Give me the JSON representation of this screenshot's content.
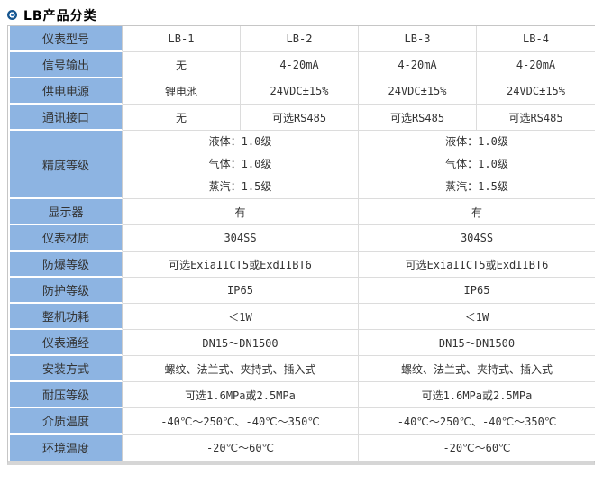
{
  "page": {
    "title": "LB产品分类"
  },
  "colors": {
    "label_cell_bg": "#8db4e2",
    "bullet_icon_blue": "#17568f",
    "grid_line": "#dcdcdc",
    "outer_border": "#c6c6c6",
    "bottom_bar": "#d6d6d6",
    "text": "#333333"
  },
  "table": {
    "rows": [
      {
        "label": "仪表型号",
        "cells": [
          "LB-1",
          "LB-2",
          "LB-3",
          "LB-4"
        ]
      },
      {
        "label": "信号输出",
        "cells": [
          "无",
          "4-20mA",
          "4-20mA",
          "4-20mA"
        ]
      },
      {
        "label": "供电电源",
        "cells": [
          "锂电池",
          "24VDC±15%",
          "24VDC±15%",
          "24VDC±15%"
        ]
      },
      {
        "label": "通讯接口",
        "cells": [
          "无",
          "可选RS485",
          "可选RS485",
          "可选RS485"
        ]
      },
      {
        "label": "精度等级",
        "cells": [
          [
            "液体：1.0级",
            "气体：1.0级",
            "蒸汽：1.5级"
          ],
          [
            "液体：1.0级",
            "气体：1.0级",
            "蒸汽：1.5级"
          ]
        ]
      },
      {
        "label": "显示器",
        "cells": [
          "有",
          "有"
        ]
      },
      {
        "label": "仪表材质",
        "cells": [
          "304SS",
          "304SS"
        ]
      },
      {
        "label": "防爆等级",
        "cells": [
          "可选ExiaIICT5或ExdIIBT6",
          "可选ExiaIICT5或ExdIIBT6"
        ]
      },
      {
        "label": "防护等级",
        "cells": [
          "IP65",
          "IP65"
        ]
      },
      {
        "label": "整机功耗",
        "cells": [
          "＜1W",
          "＜1W"
        ]
      },
      {
        "label": "仪表通经",
        "cells": [
          "DN15～DN1500",
          "DN15～DN1500"
        ]
      },
      {
        "label": "安装方式",
        "cells": [
          "螺纹、法兰式、夹持式、插入式",
          "螺纹、法兰式、夹持式、插入式"
        ]
      },
      {
        "label": "耐压等级",
        "cells": [
          "可选1.6MPa或2.5MPa",
          "可选1.6MPa或2.5MPa"
        ]
      },
      {
        "label": "介质温度",
        "cells": [
          "-40℃～250℃、-40℃～350℃",
          "-40℃～250℃、-40℃～350℃"
        ]
      },
      {
        "label": "环境温度",
        "cells": [
          "-20℃～60℃",
          "-20℃～60℃"
        ]
      }
    ]
  }
}
